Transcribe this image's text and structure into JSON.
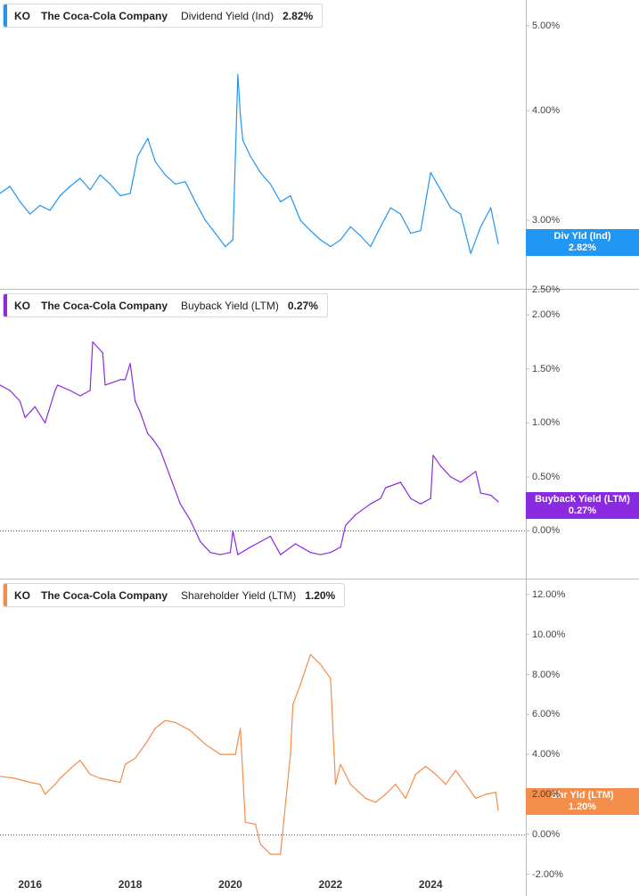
{
  "chart_data": [
    {
      "type": "line",
      "ticker": "KO",
      "company": "The Coca-Cola Company",
      "metric": "Dividend Yield (Ind)",
      "current_value": "2.82%",
      "badge_label": "Div Yld (Ind)",
      "badge_value": "2.82%",
      "color": "#2196f3",
      "y_scale": "log",
      "ylim": [
        2.5,
        5.3
      ],
      "yticks": [
        {
          "v": 5.0,
          "label": "5.00%"
        },
        {
          "v": 4.0,
          "label": "4.00%"
        },
        {
          "v": 3.0,
          "label": "3.00%"
        },
        {
          "v": 2.5,
          "label": "2.50%"
        }
      ],
      "zero_line": false,
      "x": [
        2015.4,
        2015.6,
        2015.8,
        2016.0,
        2016.2,
        2016.4,
        2016.6,
        2016.8,
        2017.0,
        2017.2,
        2017.4,
        2017.6,
        2017.8,
        2018.0,
        2018.15,
        2018.35,
        2018.5,
        2018.7,
        2018.9,
        2019.1,
        2019.3,
        2019.5,
        2019.7,
        2019.9,
        2020.05,
        2020.15,
        2020.2,
        2020.25,
        2020.4,
        2020.6,
        2020.8,
        2021.0,
        2021.2,
        2021.4,
        2021.6,
        2021.8,
        2022.0,
        2022.2,
        2022.4,
        2022.6,
        2022.8,
        2023.0,
        2023.2,
        2023.4,
        2023.6,
        2023.8,
        2024.0,
        2024.2,
        2024.4,
        2024.6,
        2024.8,
        2025.0,
        2025.2,
        2025.35
      ],
      "y": [
        3.22,
        3.28,
        3.15,
        3.05,
        3.12,
        3.08,
        3.2,
        3.28,
        3.35,
        3.25,
        3.38,
        3.3,
        3.2,
        3.22,
        3.55,
        3.72,
        3.5,
        3.38,
        3.3,
        3.32,
        3.15,
        3.0,
        2.9,
        2.8,
        2.85,
        4.4,
        3.95,
        3.7,
        3.55,
        3.4,
        3.3,
        3.15,
        3.2,
        3.0,
        2.92,
        2.85,
        2.8,
        2.85,
        2.95,
        2.88,
        2.8,
        2.95,
        3.1,
        3.05,
        2.9,
        2.92,
        3.4,
        3.25,
        3.1,
        3.05,
        2.75,
        2.95,
        3.1,
        2.82
      ]
    },
    {
      "type": "line",
      "ticker": "KO",
      "company": "The Coca-Cola Company",
      "metric": "Buyback Yield (LTM)",
      "current_value": "0.27%",
      "badge_label": "Buyback Yield (LTM)",
      "badge_value": "0.27%",
      "color": "#8a2be2",
      "y_scale": "linear",
      "ylim": [
        -0.45,
        2.15
      ],
      "yticks": [
        {
          "v": 2.0,
          "label": "2.00%"
        },
        {
          "v": 1.5,
          "label": "1.50%"
        },
        {
          "v": 1.0,
          "label": "1.00%"
        },
        {
          "v": 0.5,
          "label": "0.50%"
        },
        {
          "v": 0.0,
          "label": "0.00%"
        }
      ],
      "zero_line": true,
      "x": [
        2015.4,
        2015.6,
        2015.8,
        2015.9,
        2016.1,
        2016.3,
        2016.5,
        2016.55,
        2016.8,
        2017.0,
        2017.2,
        2017.25,
        2017.35,
        2017.45,
        2017.5,
        2017.8,
        2017.9,
        2018.0,
        2018.1,
        2018.2,
        2018.35,
        2018.45,
        2018.6,
        2018.8,
        2019.0,
        2019.2,
        2019.4,
        2019.6,
        2019.8,
        2020.0,
        2020.05,
        2020.15,
        2020.4,
        2020.6,
        2020.8,
        2021.0,
        2021.3,
        2021.6,
        2021.8,
        2022.0,
        2022.2,
        2022.3,
        2022.5,
        2022.8,
        2023.0,
        2023.1,
        2023.4,
        2023.6,
        2023.8,
        2024.0,
        2024.05,
        2024.2,
        2024.4,
        2024.6,
        2024.9,
        2025.0,
        2025.2,
        2025.35
      ],
      "y": [
        1.35,
        1.3,
        1.2,
        1.05,
        1.15,
        1.0,
        1.3,
        1.35,
        1.3,
        1.25,
        1.3,
        1.75,
        1.7,
        1.65,
        1.35,
        1.4,
        1.4,
        1.55,
        1.2,
        1.1,
        0.9,
        0.85,
        0.75,
        0.5,
        0.25,
        0.1,
        -0.1,
        -0.2,
        -0.22,
        -0.2,
        0.0,
        -0.22,
        -0.15,
        -0.1,
        -0.05,
        -0.22,
        -0.12,
        -0.2,
        -0.22,
        -0.2,
        -0.15,
        0.05,
        0.15,
        0.25,
        0.3,
        0.4,
        0.45,
        0.3,
        0.25,
        0.3,
        0.7,
        0.6,
        0.5,
        0.45,
        0.55,
        0.35,
        0.33,
        0.27
      ]
    },
    {
      "type": "line",
      "ticker": "KO",
      "company": "The Coca-Cola Company",
      "metric": "Shareholder Yield (LTM)",
      "current_value": "1.20%",
      "badge_label": "Shr Yld (LTM)",
      "badge_value": "1.20%",
      "color": "#f48c4a",
      "y_scale": "linear",
      "ylim": [
        -2.2,
        12.4
      ],
      "yticks": [
        {
          "v": 12,
          "label": "12.00%"
        },
        {
          "v": 10,
          "label": "10.00%"
        },
        {
          "v": 8,
          "label": "8.00%"
        },
        {
          "v": 6,
          "label": "6.00%"
        },
        {
          "v": 4,
          "label": "4.00%"
        },
        {
          "v": 2,
          "label": "2.00%"
        },
        {
          "v": 0,
          "label": "0.00%"
        },
        {
          "v": -2,
          "label": "-2.00%"
        }
      ],
      "zero_line": true,
      "x": [
        2015.4,
        2015.7,
        2016.0,
        2016.2,
        2016.3,
        2016.5,
        2016.6,
        2016.9,
        2017.0,
        2017.2,
        2017.4,
        2017.8,
        2017.9,
        2018.1,
        2018.3,
        2018.5,
        2018.7,
        2018.9,
        2019.2,
        2019.5,
        2019.8,
        2020.1,
        2020.2,
        2020.3,
        2020.5,
        2020.6,
        2020.8,
        2021.0,
        2021.2,
        2021.25,
        2021.4,
        2021.6,
        2021.8,
        2022.0,
        2022.1,
        2022.2,
        2022.3,
        2022.4,
        2022.7,
        2022.9,
        2023.1,
        2023.3,
        2023.5,
        2023.7,
        2023.9,
        2024.1,
        2024.3,
        2024.5,
        2024.7,
        2024.9,
        2025.1,
        2025.3,
        2025.35
      ],
      "y": [
        2.9,
        2.8,
        2.6,
        2.5,
        2.0,
        2.5,
        2.8,
        3.5,
        3.7,
        3.0,
        2.8,
        2.6,
        3.5,
        3.8,
        4.5,
        5.3,
        5.7,
        5.6,
        5.2,
        4.5,
        4.0,
        4.0,
        5.3,
        0.6,
        0.5,
        -0.5,
        -1.0,
        -1.0,
        4.0,
        6.5,
        7.5,
        9.0,
        8.5,
        7.8,
        2.5,
        3.5,
        3.0,
        2.5,
        1.8,
        1.6,
        2.0,
        2.5,
        1.8,
        3.0,
        3.4,
        3.0,
        2.5,
        3.2,
        2.5,
        1.8,
        2.0,
        2.1,
        1.2
      ]
    }
  ],
  "x_axis": {
    "xlim": [
      2015.4,
      2025.9
    ],
    "ticks": [
      {
        "v": 2016,
        "label": "2016"
      },
      {
        "v": 2018,
        "label": "2018"
      },
      {
        "v": 2020,
        "label": "2020"
      },
      {
        "v": 2022,
        "label": "2022"
      },
      {
        "v": 2024,
        "label": "2024"
      }
    ]
  }
}
